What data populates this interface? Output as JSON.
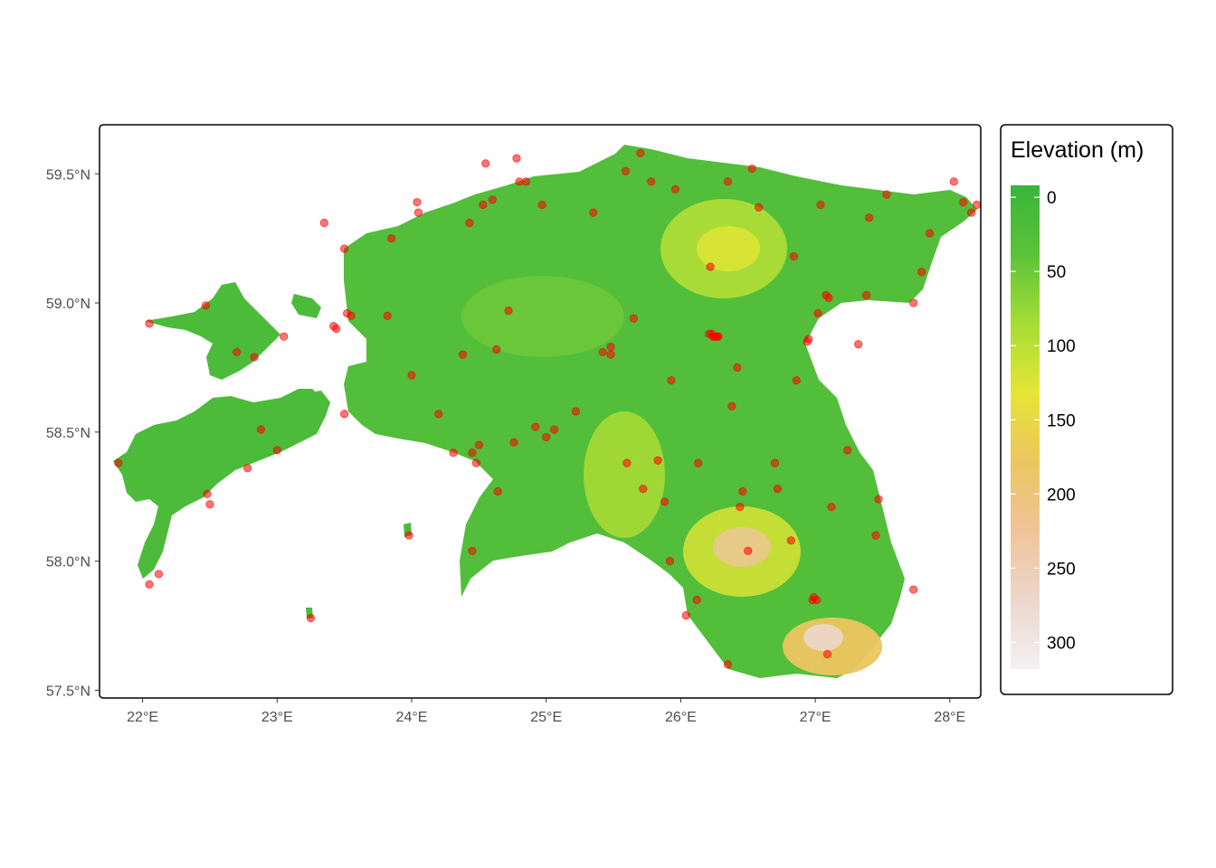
{
  "map": {
    "x_axis": {
      "range": [
        21.68,
        28.23
      ],
      "ticks": [
        {
          "value": 22,
          "label": "22°E"
        },
        {
          "value": 23,
          "label": "23°E"
        },
        {
          "value": 24,
          "label": "24°E"
        },
        {
          "value": 25,
          "label": "25°E"
        },
        {
          "value": 26,
          "label": "26°E"
        },
        {
          "value": 27,
          "label": "27°E"
        },
        {
          "value": 28,
          "label": "28°E"
        }
      ]
    },
    "y_axis": {
      "range": [
        57.47,
        59.69
      ],
      "ticks": [
        {
          "value": 57.5,
          "label": "57.5°N"
        },
        {
          "value": 58.0,
          "label": "58.0°N"
        },
        {
          "value": 58.5,
          "label": "58.5°N"
        },
        {
          "value": 59.0,
          "label": "59.0°N"
        },
        {
          "value": 59.5,
          "label": "59.5°N"
        }
      ]
    },
    "legend": {
      "title": "Elevation (m)",
      "breaks": [
        {
          "value": 0,
          "label": "0"
        },
        {
          "value": 50,
          "label": "50"
        },
        {
          "value": 100,
          "label": "100"
        },
        {
          "value": 150,
          "label": "150"
        },
        {
          "value": 200,
          "label": "200"
        },
        {
          "value": 250,
          "label": "250"
        },
        {
          "value": 300,
          "label": "300"
        }
      ],
      "limits": [
        -8,
        318
      ],
      "colors": [
        "#3ab53a",
        "#5cc23a",
        "#a6dd36",
        "#e6e536",
        "#ecc560",
        "#f0c49a",
        "#ecd6cc",
        "#f2f2f2"
      ]
    },
    "point_color": "#ff0000",
    "points": [
      [
        21.82,
        58.38
      ],
      [
        22.05,
        58.92
      ],
      [
        22.05,
        57.91
      ],
      [
        22.12,
        57.95
      ],
      [
        22.47,
        58.99
      ],
      [
        22.48,
        58.26
      ],
      [
        22.5,
        58.22
      ],
      [
        22.7,
        58.81
      ],
      [
        22.83,
        58.79
      ],
      [
        22.88,
        58.51
      ],
      [
        22.78,
        58.36
      ],
      [
        23.0,
        58.43
      ],
      [
        23.05,
        58.87
      ],
      [
        23.25,
        57.78
      ],
      [
        23.35,
        59.31
      ],
      [
        23.42,
        58.91
      ],
      [
        23.44,
        58.9
      ],
      [
        23.5,
        59.21
      ],
      [
        23.5,
        58.57
      ],
      [
        23.52,
        58.96
      ],
      [
        23.55,
        58.95
      ],
      [
        23.82,
        58.95
      ],
      [
        23.85,
        59.25
      ],
      [
        23.98,
        58.1
      ],
      [
        24.0,
        58.72
      ],
      [
        24.04,
        59.39
      ],
      [
        24.05,
        59.35
      ],
      [
        24.2,
        58.57
      ],
      [
        24.31,
        58.42
      ],
      [
        24.38,
        58.8
      ],
      [
        24.43,
        59.31
      ],
      [
        24.45,
        58.04
      ],
      [
        24.45,
        58.42
      ],
      [
        24.48,
        58.38
      ],
      [
        24.5,
        58.45
      ],
      [
        24.53,
        59.38
      ],
      [
        24.55,
        59.54
      ],
      [
        24.6,
        59.4
      ],
      [
        24.63,
        58.82
      ],
      [
        24.64,
        58.27
      ],
      [
        24.72,
        58.97
      ],
      [
        24.76,
        58.46
      ],
      [
        24.78,
        59.56
      ],
      [
        24.8,
        59.47
      ],
      [
        24.85,
        59.47
      ],
      [
        24.92,
        58.52
      ],
      [
        24.97,
        59.38
      ],
      [
        25.0,
        58.48
      ],
      [
        25.06,
        58.51
      ],
      [
        25.22,
        58.58
      ],
      [
        25.35,
        59.35
      ],
      [
        25.42,
        58.81
      ],
      [
        25.48,
        58.83
      ],
      [
        25.48,
        58.8
      ],
      [
        25.59,
        59.51
      ],
      [
        25.6,
        58.38
      ],
      [
        25.65,
        58.94
      ],
      [
        25.7,
        59.58
      ],
      [
        25.72,
        58.28
      ],
      [
        25.78,
        59.47
      ],
      [
        25.83,
        58.39
      ],
      [
        25.88,
        58.23
      ],
      [
        25.92,
        58.0
      ],
      [
        25.93,
        58.7
      ],
      [
        25.96,
        59.44
      ],
      [
        26.04,
        57.79
      ],
      [
        26.12,
        57.85
      ],
      [
        26.13,
        58.38
      ],
      [
        26.22,
        59.14
      ],
      [
        26.35,
        59.47
      ],
      [
        26.35,
        57.6
      ],
      [
        26.38,
        58.6
      ],
      [
        26.42,
        58.75
      ],
      [
        26.44,
        58.21
      ],
      [
        26.46,
        58.27
      ],
      [
        26.5,
        58.04
      ],
      [
        26.53,
        59.52
      ],
      [
        26.58,
        59.37
      ],
      [
        26.7,
        58.38
      ],
      [
        26.72,
        58.28
      ],
      [
        26.82,
        58.08
      ],
      [
        26.84,
        59.18
      ],
      [
        26.86,
        58.7
      ],
      [
        26.94,
        58.85
      ],
      [
        26.95,
        58.86
      ],
      [
        26.98,
        57.85
      ],
      [
        26.99,
        57.86
      ],
      [
        27.01,
        57.85
      ],
      [
        27.02,
        58.96
      ],
      [
        27.04,
        59.38
      ],
      [
        27.08,
        59.03
      ],
      [
        27.09,
        57.64
      ],
      [
        27.1,
        59.02
      ],
      [
        27.12,
        58.21
      ],
      [
        27.24,
        58.43
      ],
      [
        27.32,
        58.84
      ],
      [
        27.38,
        59.03
      ],
      [
        27.4,
        59.33
      ],
      [
        27.45,
        58.1
      ],
      [
        27.47,
        58.24
      ],
      [
        27.53,
        59.42
      ],
      [
        27.73,
        59.0
      ],
      [
        27.73,
        57.89
      ],
      [
        27.79,
        59.12
      ],
      [
        27.85,
        59.27
      ],
      [
        28.03,
        59.47
      ],
      [
        28.1,
        59.39
      ],
      [
        28.16,
        59.35
      ],
      [
        28.2,
        59.38
      ],
      [
        26.21,
        58.88
      ],
      [
        26.23,
        58.88
      ],
      [
        26.24,
        58.87
      ],
      [
        26.25,
        58.87
      ],
      [
        26.26,
        58.87
      ],
      [
        26.27,
        58.87
      ],
      [
        26.28,
        58.87
      ]
    ]
  }
}
